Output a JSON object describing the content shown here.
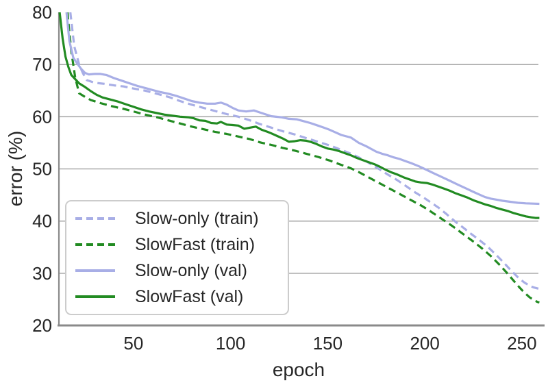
{
  "chart_data": {
    "type": "line",
    "title": "",
    "xlabel": "epoch",
    "ylabel": "error (%)",
    "xlim": [
      11.6,
      258.5
    ],
    "ylim": [
      20,
      80
    ],
    "xticks": [
      50,
      100,
      150,
      200,
      250
    ],
    "yticks": [
      20,
      30,
      40,
      50,
      60,
      70,
      80
    ],
    "grid": "horizontal-only, lines at 30-70",
    "legend_position": "lower-left",
    "colors": {
      "slow_only": "#a8aee6",
      "slowfast": "#228b22",
      "grid": "#aaaaaa",
      "spine": "#8a8a8a",
      "text": "#262626",
      "legend_border": "#cccccc",
      "background": "#ffffff"
    },
    "series": [
      {
        "name": "Slow-only (train)",
        "color": "#a8aee6",
        "dash": true,
        "points": [
          [
            17.5,
            80
          ],
          [
            19.5,
            73.5
          ],
          [
            22,
            70.0
          ],
          [
            24,
            68.3
          ],
          [
            26,
            67.0
          ],
          [
            30,
            66.5
          ],
          [
            35,
            66.3
          ],
          [
            40,
            66.0
          ],
          [
            45,
            65.8
          ],
          [
            50,
            65.4
          ],
          [
            56,
            65.0
          ],
          [
            62,
            64.4
          ],
          [
            68,
            63.8
          ],
          [
            74,
            63.0
          ],
          [
            80,
            62.3
          ],
          [
            86,
            61.7
          ],
          [
            92,
            61.1
          ],
          [
            98,
            60.5
          ],
          [
            104,
            60.0
          ],
          [
            110,
            59.3
          ],
          [
            115,
            58.6
          ],
          [
            121,
            57.9
          ],
          [
            127,
            57.2
          ],
          [
            133,
            56.6
          ],
          [
            139,
            55.9
          ],
          [
            145,
            55.2
          ],
          [
            151,
            54.5
          ],
          [
            156,
            53.8
          ],
          [
            162,
            52.9
          ],
          [
            166,
            52.2
          ],
          [
            170,
            51.4
          ],
          [
            175,
            50.3
          ],
          [
            181,
            48.9
          ],
          [
            186,
            47.8
          ],
          [
            190,
            46.8
          ],
          [
            195,
            45.5
          ],
          [
            199,
            44.6
          ],
          [
            203,
            43.6
          ],
          [
            207,
            42.6
          ],
          [
            211,
            41.4
          ],
          [
            216,
            39.8
          ],
          [
            220,
            38.7
          ],
          [
            224,
            37.5
          ],
          [
            228,
            36.4
          ],
          [
            232,
            35.2
          ],
          [
            236,
            33.8
          ],
          [
            240,
            32.3
          ],
          [
            244,
            30.7
          ],
          [
            248,
            29.2
          ],
          [
            251,
            28.3
          ],
          [
            254,
            27.6
          ],
          [
            256,
            27.3
          ],
          [
            259,
            27.0
          ]
        ]
      },
      {
        "name": "SlowFast (train)",
        "color": "#228b22",
        "dash": true,
        "points": [
          [
            16,
            80
          ],
          [
            18,
            72.5
          ],
          [
            20,
            67.5
          ],
          [
            22,
            64.5
          ],
          [
            25,
            63.8
          ],
          [
            28,
            63.2
          ],
          [
            33,
            62.6
          ],
          [
            39,
            62.0
          ],
          [
            45,
            61.5
          ],
          [
            50,
            61.0
          ],
          [
            56,
            60.4
          ],
          [
            62,
            59.9
          ],
          [
            68,
            59.3
          ],
          [
            74,
            58.7
          ],
          [
            80,
            58.1
          ],
          [
            86,
            57.6
          ],
          [
            92,
            57.1
          ],
          [
            98,
            56.7
          ],
          [
            104,
            56.2
          ],
          [
            110,
            55.7
          ],
          [
            115,
            55.1
          ],
          [
            121,
            54.6
          ],
          [
            127,
            54.0
          ],
          [
            133,
            53.5
          ],
          [
            139,
            52.9
          ],
          [
            145,
            52.3
          ],
          [
            151,
            51.6
          ],
          [
            156,
            50.9
          ],
          [
            162,
            50.1
          ],
          [
            166,
            49.4
          ],
          [
            170,
            48.6
          ],
          [
            174,
            47.8
          ],
          [
            178,
            47.0
          ],
          [
            182,
            46.2
          ],
          [
            186,
            45.4
          ],
          [
            190,
            44.6
          ],
          [
            194,
            43.8
          ],
          [
            198,
            43.0
          ],
          [
            202,
            42.1
          ],
          [
            206,
            41.1
          ],
          [
            210,
            40.1
          ],
          [
            214,
            39.1
          ],
          [
            218,
            38.0
          ],
          [
            222,
            36.9
          ],
          [
            226,
            35.8
          ],
          [
            230,
            34.6
          ],
          [
            234,
            33.3
          ],
          [
            238,
            31.8
          ],
          [
            242,
            30.2
          ],
          [
            245,
            28.9
          ],
          [
            248,
            27.6
          ],
          [
            251,
            26.4
          ],
          [
            254,
            25.4
          ],
          [
            256,
            24.9
          ],
          [
            258,
            24.5
          ],
          [
            259,
            24.4
          ]
        ]
      },
      {
        "name": "Slow-only (val)",
        "color": "#a8aee6",
        "dash": false,
        "points": [
          [
            15.5,
            80
          ],
          [
            17,
            74.5
          ],
          [
            19,
            71.3
          ],
          [
            21,
            70.2
          ],
          [
            23,
            69.2
          ],
          [
            25,
            68.4
          ],
          [
            27,
            68.1
          ],
          [
            30,
            68.2
          ],
          [
            33,
            68.2
          ],
          [
            36,
            68.0
          ],
          [
            40,
            67.4
          ],
          [
            44,
            66.9
          ],
          [
            48,
            66.4
          ],
          [
            52,
            65.9
          ],
          [
            56,
            65.5
          ],
          [
            60,
            65.1
          ],
          [
            64,
            64.7
          ],
          [
            68,
            64.4
          ],
          [
            72,
            64.0
          ],
          [
            76,
            63.5
          ],
          [
            80,
            63.0
          ],
          [
            84,
            62.7
          ],
          [
            88,
            62.5
          ],
          [
            92,
            62.5
          ],
          [
            95,
            62.7
          ],
          [
            98,
            62.3
          ],
          [
            101,
            61.7
          ],
          [
            104,
            61.2
          ],
          [
            108,
            61.0
          ],
          [
            112,
            61.2
          ],
          [
            116,
            60.7
          ],
          [
            121,
            60.1
          ],
          [
            126,
            59.9
          ],
          [
            130,
            59.6
          ],
          [
            134,
            59.5
          ],
          [
            138,
            59.1
          ],
          [
            141,
            58.8
          ],
          [
            145,
            58.3
          ],
          [
            148,
            57.9
          ],
          [
            151,
            57.5
          ],
          [
            154,
            57.0
          ],
          [
            157,
            56.5
          ],
          [
            162,
            56.0
          ],
          [
            166,
            55.0
          ],
          [
            170,
            54.3
          ],
          [
            175,
            53.3
          ],
          [
            178,
            52.9
          ],
          [
            181,
            52.6
          ],
          [
            184,
            52.2
          ],
          [
            187,
            51.9
          ],
          [
            190,
            51.5
          ],
          [
            193,
            51.1
          ],
          [
            197,
            50.5
          ],
          [
            201,
            49.8
          ],
          [
            205,
            49.1
          ],
          [
            209,
            48.4
          ],
          [
            213,
            47.7
          ],
          [
            217,
            47.0
          ],
          [
            221,
            46.3
          ],
          [
            225,
            45.6
          ],
          [
            228,
            45.1
          ],
          [
            231,
            44.6
          ],
          [
            234,
            44.3
          ],
          [
            237,
            44.1
          ],
          [
            240,
            43.9
          ],
          [
            244,
            43.7
          ],
          [
            248,
            43.5
          ],
          [
            252,
            43.4
          ],
          [
            256,
            43.35
          ],
          [
            259,
            43.3
          ]
        ]
      },
      {
        "name": "SlowFast (val)",
        "color": "#228b22",
        "dash": false,
        "points": [
          [
            12,
            80
          ],
          [
            13.5,
            75
          ],
          [
            15,
            71.5
          ],
          [
            16.5,
            69.5
          ],
          [
            18,
            68.0
          ],
          [
            20,
            67.2
          ],
          [
            22,
            66.4
          ],
          [
            25,
            65.7
          ],
          [
            28,
            64.9
          ],
          [
            31,
            64.2
          ],
          [
            34,
            63.7
          ],
          [
            38,
            63.3
          ],
          [
            42,
            62.9
          ],
          [
            46,
            62.4
          ],
          [
            50,
            61.9
          ],
          [
            54,
            61.4
          ],
          [
            58,
            61.0
          ],
          [
            62,
            60.7
          ],
          [
            66,
            60.4
          ],
          [
            70,
            60.2
          ],
          [
            74,
            60.0
          ],
          [
            78,
            59.9
          ],
          [
            81,
            59.7
          ],
          [
            84,
            59.3
          ],
          [
            87,
            59.2
          ],
          [
            90,
            58.8
          ],
          [
            93,
            58.7
          ],
          [
            95,
            59.0
          ],
          [
            98,
            58.5
          ],
          [
            101,
            58.4
          ],
          [
            104,
            58.3
          ],
          [
            107,
            57.7
          ],
          [
            110,
            57.9
          ],
          [
            113,
            58.1
          ],
          [
            116,
            57.5
          ],
          [
            119,
            57.1
          ],
          [
            121,
            56.8
          ],
          [
            124,
            56.3
          ],
          [
            127,
            55.8
          ],
          [
            130,
            55.2
          ],
          [
            133,
            55.3
          ],
          [
            136,
            55.5
          ],
          [
            139,
            55.4
          ],
          [
            141,
            55.2
          ],
          [
            144,
            54.8
          ],
          [
            147,
            54.3
          ],
          [
            150,
            53.9
          ],
          [
            153,
            53.7
          ],
          [
            156,
            53.4
          ],
          [
            159,
            53.0
          ],
          [
            162,
            52.6
          ],
          [
            165,
            52.1
          ],
          [
            168,
            51.7
          ],
          [
            171,
            51.3
          ],
          [
            174,
            50.9
          ],
          [
            177,
            50.4
          ],
          [
            180,
            49.8
          ],
          [
            183,
            49.3
          ],
          [
            186,
            48.9
          ],
          [
            189,
            48.4
          ],
          [
            192,
            48.0
          ],
          [
            195,
            47.6
          ],
          [
            198,
            47.4
          ],
          [
            201,
            47.3
          ],
          [
            204,
            47.0
          ],
          [
            207,
            46.6
          ],
          [
            210,
            46.2
          ],
          [
            213,
            45.8
          ],
          [
            216,
            45.3
          ],
          [
            219,
            44.9
          ],
          [
            222,
            44.5
          ],
          [
            225,
            44.0
          ],
          [
            228,
            43.6
          ],
          [
            231,
            43.2
          ],
          [
            234,
            42.9
          ],
          [
            237,
            42.5
          ],
          [
            240,
            42.2
          ],
          [
            243,
            41.9
          ],
          [
            246,
            41.5
          ],
          [
            249,
            41.2
          ],
          [
            252,
            40.9
          ],
          [
            255,
            40.7
          ],
          [
            257,
            40.6
          ],
          [
            259,
            40.6
          ]
        ]
      }
    ]
  }
}
